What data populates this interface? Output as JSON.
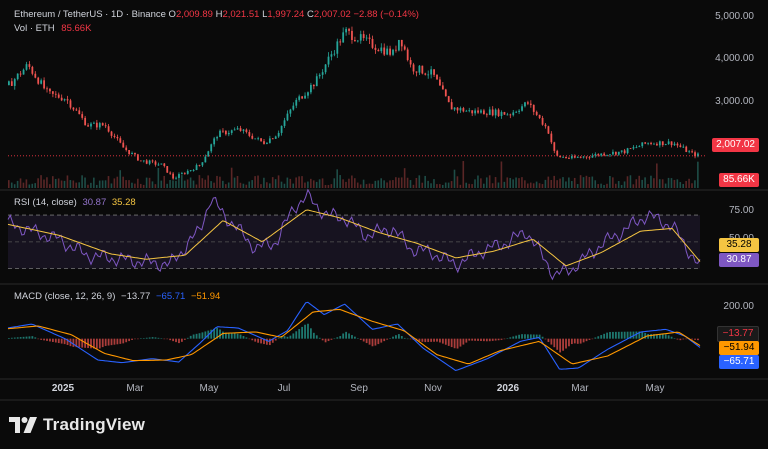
{
  "header": {
    "symbol": "Ethereum / TetherUS · 1D · Binance",
    "open_label": "O",
    "open": "2,009.89",
    "high_label": "H",
    "high": "2,021.51",
    "low_label": "L",
    "low": "1,997.24",
    "close_label": "C",
    "close": "2,007.02",
    "change": "−2.88 (−0.14%)",
    "volume_label": "Vol · ETH",
    "volume": "85.66K"
  },
  "rsi": {
    "label": "RSI (14, close)",
    "value": "30.87",
    "ma": "35.28"
  },
  "macd": {
    "label": "MACD (close, 12, 26, 9)",
    "hist": "−13.77",
    "macd": "−65.71",
    "signal": "−51.94"
  },
  "axes": {
    "price_ticks": [
      "5,000.00",
      "4,000.00",
      "3,000.00"
    ],
    "rsi_ticks": [
      "75.00",
      "50.00"
    ],
    "macd_ticks": [
      "200.00"
    ],
    "x_ticks": [
      "2025",
      "Mar",
      "May",
      "Jul",
      "Sep",
      "Nov",
      "2026",
      "Mar",
      "May"
    ]
  },
  "tags": {
    "price": "2,007.02",
    "volume": "85.66K",
    "rsi_ma": "35.28",
    "rsi": "30.87",
    "macd_hist": "−13.77",
    "macd_signal": "−51.94",
    "macd_line": "−65.71"
  },
  "brand": {
    "name": "TradingView",
    "icon": "tradingview-logo-icon"
  },
  "colors": {
    "up": "#26a69a",
    "down": "#ef5350",
    "rsi": "#7e57c2",
    "rsi_ma": "#f5c542",
    "macd": "#2962ff",
    "signal": "#ff9800",
    "price_tag": "#f23645"
  },
  "chart_data": [
    {
      "type": "candlestick",
      "title": "Ethereum / TetherUS · 1D · Binance",
      "x_ticks": [
        "2025",
        "Mar",
        "May",
        "Jul",
        "Sep",
        "Nov",
        "2026",
        "Mar",
        "May"
      ],
      "ylim": [
        1350,
        5200
      ],
      "series": [
        {
          "name": "close (approx.)",
          "points": [
            [
              "2024-12-01",
              3600
            ],
            [
              "2024-12-16",
              4050
            ],
            [
              "2025-01-01",
              3400
            ],
            [
              "2025-01-15",
              3300
            ],
            [
              "2025-02-01",
              2700
            ],
            [
              "2025-02-15",
              2700
            ],
            [
              "2025-03-01",
              2200
            ],
            [
              "2025-03-15",
              1900
            ],
            [
              "2025-04-01",
              1800
            ],
            [
              "2025-04-10",
              1500
            ],
            [
              "2025-05-01",
              1800
            ],
            [
              "2025-05-15",
              2500
            ],
            [
              "2025-06-01",
              2600
            ],
            [
              "2025-06-20",
              2300
            ],
            [
              "2025-07-01",
              2500
            ],
            [
              "2025-07-15",
              3200
            ],
            [
              "2025-08-01",
              3700
            ],
            [
              "2025-08-15",
              4400
            ],
            [
              "2025-08-24",
              4800
            ],
            [
              "2025-09-15",
              4500
            ],
            [
              "2025-10-01",
              4300
            ],
            [
              "2025-10-06",
              4700
            ],
            [
              "2025-10-15",
              4000
            ],
            [
              "2025-11-01",
              3850
            ],
            [
              "2025-11-15",
              3100
            ],
            [
              "2025-12-01",
              3000
            ],
            [
              "2025-12-15",
              3000
            ],
            [
              "2026-01-01",
              2950
            ],
            [
              "2026-01-15",
              3200
            ],
            [
              "2026-01-31",
              2600
            ],
            [
              "2026-02-06",
              2000
            ],
            [
              "2026-02-20",
              1950
            ],
            [
              "2026-03-15",
              2050
            ],
            [
              "2026-04-01",
              2100
            ],
            [
              "2026-04-20",
              2300
            ],
            [
              "2026-05-10",
              2300
            ],
            [
              "2026-05-25",
              2050
            ],
            [
              "2026-06-01",
              2007
            ]
          ]
        }
      ],
      "last_close": 2007.02,
      "volume_last": "85.66K"
    },
    {
      "type": "line",
      "title": "RSI (14, close)",
      "ylim": [
        20,
        85
      ],
      "bands": [
        70,
        50,
        30
      ],
      "series": [
        {
          "name": "RSI",
          "points": [
            [
              "2024-12-01",
              64
            ],
            [
              "2024-12-20",
              58
            ],
            [
              "2025-01-10",
              52
            ],
            [
              "2025-02-01",
              40
            ],
            [
              "2025-02-20",
              38
            ],
            [
              "2025-03-10",
              36
            ],
            [
              "2025-04-08",
              33
            ],
            [
              "2025-05-01",
              58
            ],
            [
              "2025-05-10",
              82
            ],
            [
              "2025-05-25",
              66
            ],
            [
              "2025-06-15",
              45
            ],
            [
              "2025-07-01",
              50
            ],
            [
              "2025-07-15",
              76
            ],
            [
              "2025-07-25",
              84
            ],
            [
              "2025-08-10",
              70
            ],
            [
              "2025-08-24",
              68
            ],
            [
              "2025-09-10",
              55
            ],
            [
              "2025-10-01",
              60
            ],
            [
              "2025-10-15",
              45
            ],
            [
              "2025-11-01",
              42
            ],
            [
              "2025-11-20",
              33
            ],
            [
              "2025-12-10",
              43
            ],
            [
              "2026-01-01",
              50
            ],
            [
              "2026-01-15",
              58
            ],
            [
              "2026-02-06",
              25
            ],
            [
              "2026-02-20",
              30
            ],
            [
              "2026-03-15",
              48
            ],
            [
              "2026-04-01",
              58
            ],
            [
              "2026-04-20",
              70
            ],
            [
              "2026-05-10",
              62
            ],
            [
              "2026-06-01",
              30.87
            ]
          ]
        },
        {
          "name": "RSI-based MA",
          "points": [
            [
              "2024-12-01",
              63
            ],
            [
              "2025-01-10",
              55
            ],
            [
              "2025-02-20",
              41
            ],
            [
              "2025-03-20",
              37
            ],
            [
              "2025-04-20",
              40
            ],
            [
              "2025-05-20",
              66
            ],
            [
              "2025-06-20",
              50
            ],
            [
              "2025-07-25",
              74
            ],
            [
              "2025-08-20",
              68
            ],
            [
              "2025-09-20",
              57
            ],
            [
              "2025-10-20",
              49
            ],
            [
              "2025-11-20",
              38
            ],
            [
              "2025-12-20",
              43
            ],
            [
              "2026-01-20",
              52
            ],
            [
              "2026-02-15",
              32
            ],
            [
              "2026-03-15",
              42
            ],
            [
              "2026-04-15",
              58
            ],
            [
              "2026-05-10",
              60
            ],
            [
              "2026-06-01",
              35.28
            ]
          ]
        }
      ]
    },
    {
      "type": "line",
      "title": "MACD (close, 12, 26, 9)",
      "ylim": [
        -280,
        320
      ],
      "series": [
        {
          "name": "MACD",
          "points": [
            [
              "2024-12-01",
              80
            ],
            [
              "2024-12-20",
              110
            ],
            [
              "2025-01-15",
              0
            ],
            [
              "2025-02-10",
              -160
            ],
            [
              "2025-03-01",
              -180
            ],
            [
              "2025-03-25",
              -150
            ],
            [
              "2025-04-15",
              -175
            ],
            [
              "2025-05-01",
              -40
            ],
            [
              "2025-05-15",
              90
            ],
            [
              "2025-06-01",
              80
            ],
            [
              "2025-06-25",
              -20
            ],
            [
              "2025-07-10",
              60
            ],
            [
              "2025-07-25",
              280
            ],
            [
              "2025-08-08",
              180
            ],
            [
              "2025-08-24",
              260
            ],
            [
              "2025-09-15",
              70
            ],
            [
              "2025-10-05",
              110
            ],
            [
              "2025-10-25",
              -70
            ],
            [
              "2025-11-20",
              -240
            ],
            [
              "2025-12-15",
              -150
            ],
            [
              "2026-01-10",
              -20
            ],
            [
              "2026-01-25",
              10
            ],
            [
              "2026-02-10",
              -230
            ],
            [
              "2026-02-25",
              -220
            ],
            [
              "2026-03-20",
              -80
            ],
            [
              "2026-04-15",
              50
            ],
            [
              "2026-05-05",
              70
            ],
            [
              "2026-05-20",
              20
            ],
            [
              "2026-06-01",
              -65.71
            ]
          ]
        },
        {
          "name": "Signal",
          "points": [
            [
              "2024-12-01",
              75
            ],
            [
              "2024-12-25",
              95
            ],
            [
              "2025-01-20",
              30
            ],
            [
              "2025-02-15",
              -110
            ],
            [
              "2025-03-10",
              -165
            ],
            [
              "2025-04-05",
              -160
            ],
            [
              "2025-04-25",
              -120
            ],
            [
              "2025-05-20",
              40
            ],
            [
              "2025-06-15",
              50
            ],
            [
              "2025-07-05",
              10
            ],
            [
              "2025-07-30",
              200
            ],
            [
              "2025-08-20",
              220
            ],
            [
              "2025-09-15",
              130
            ],
            [
              "2025-10-10",
              60
            ],
            [
              "2025-11-05",
              -120
            ],
            [
              "2025-11-30",
              -190
            ],
            [
              "2025-12-25",
              -90
            ],
            [
              "2026-01-25",
              -20
            ],
            [
              "2026-02-20",
              -190
            ],
            [
              "2026-03-20",
              -130
            ],
            [
              "2026-04-20",
              20
            ],
            [
              "2026-05-15",
              50
            ],
            [
              "2026-06-01",
              -51.94
            ]
          ]
        }
      ],
      "histogram_last": -13.77
    }
  ]
}
